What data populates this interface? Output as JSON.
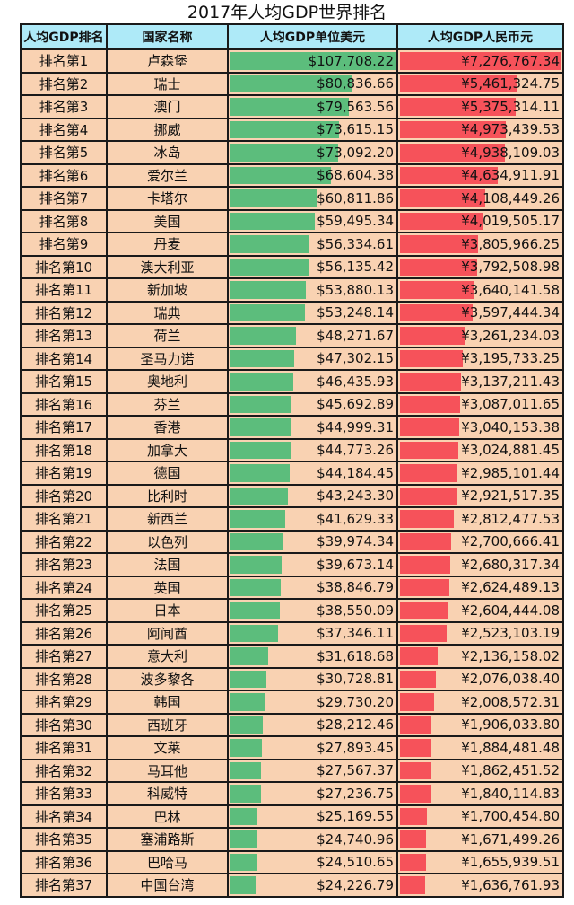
{
  "title": "2017年人均GDP世界排名",
  "colors": {
    "header_bg": "#aeeaf8",
    "cell_bg": "#f9d2b2",
    "usd_bar": "#5cbd7c",
    "cny_bar": "#f6525a"
  },
  "chart_data": {
    "type": "table",
    "title": "2017年人均GDP世界排名",
    "columns": [
      "人均GDP排名",
      "国家名称",
      "人均GDP单位美元",
      "人均GDP人民币元"
    ],
    "data_bars": [
      "人均GDP单位美元",
      "人均GDP人民币元"
    ],
    "rows": [
      [
        "排名第1",
        "卢森堡",
        "$107,708.22",
        "¥7,276,767.34"
      ],
      [
        "排名第2",
        "瑞士",
        "$80,836.66",
        "¥5,461,324.75"
      ],
      [
        "排名第3",
        "澳门",
        "$79,563.56",
        "¥5,375,314.11"
      ],
      [
        "排名第4",
        "挪威",
        "$73,615.15",
        "¥4,973,439.53"
      ],
      [
        "排名第5",
        "冰岛",
        "$73,092.20",
        "¥4,938,109.03"
      ],
      [
        "排名第6",
        "爱尔兰",
        "$68,604.38",
        "¥4,634,911.91"
      ],
      [
        "排名第7",
        "卡塔尔",
        "$60,811.86",
        "¥4,108,449.26"
      ],
      [
        "排名第8",
        "美国",
        "$59,495.34",
        "¥4,019,505.17"
      ],
      [
        "排名第9",
        "丹麦",
        "$56,334.61",
        "¥3,805,966.25"
      ],
      [
        "排名第10",
        "澳大利亚",
        "$56,135.42",
        "¥3,792,508.98"
      ],
      [
        "排名第11",
        "新加坡",
        "$53,880.13",
        "¥3,640,141.58"
      ],
      [
        "排名第12",
        "瑞典",
        "$53,248.14",
        "¥3,597,444.34"
      ],
      [
        "排名第13",
        "荷兰",
        "$48,271.67",
        "¥3,261,234.03"
      ],
      [
        "排名第14",
        "圣马力诺",
        "$47,302.15",
        "¥3,195,733.25"
      ],
      [
        "排名第15",
        "奥地利",
        "$46,435.93",
        "¥3,137,211.43"
      ],
      [
        "排名第16",
        "芬兰",
        "$45,692.89",
        "¥3,087,011.65"
      ],
      [
        "排名第17",
        "香港",
        "$44,999.31",
        "¥3,040,153.38"
      ],
      [
        "排名第18",
        "加拿大",
        "$44,773.26",
        "¥3,024,881.45"
      ],
      [
        "排名第19",
        "德国",
        "$44,184.45",
        "¥2,985,101.44"
      ],
      [
        "排名第20",
        "比利时",
        "$43,243.30",
        "¥2,921,517.35"
      ],
      [
        "排名第21",
        "新西兰",
        "$41,629.33",
        "¥2,812,477.53"
      ],
      [
        "排名第22",
        "以色列",
        "$39,974.34",
        "¥2,700,666.41"
      ],
      [
        "排名第23",
        "法国",
        "$39,673.14",
        "¥2,680,317.34"
      ],
      [
        "排名第24",
        "英国",
        "$38,846.79",
        "¥2,624,489.13"
      ],
      [
        "排名第25",
        "日本",
        "$38,550.09",
        "¥2,604,444.08"
      ],
      [
        "排名第26",
        "阿闻酋",
        "$37,346.11",
        "¥2,523,103.19"
      ],
      [
        "排名第27",
        "意大利",
        "$31,618.68",
        "¥2,136,158.02"
      ],
      [
        "排名第28",
        "波多黎各",
        "$30,728.81",
        "¥2,076,038.40"
      ],
      [
        "排名第29",
        "韩国",
        "$29,730.20",
        "¥2,008,572.31"
      ],
      [
        "排名第30",
        "西班牙",
        "$28,212.46",
        "¥1,906,033.80"
      ],
      [
        "排名第31",
        "文莱",
        "$27,893.45",
        "¥1,884,481.48"
      ],
      [
        "排名第32",
        "马耳他",
        "$27,567.37",
        "¥1,862,451.52"
      ],
      [
        "排名第33",
        "科威特",
        "$27,236.75",
        "¥1,840,114.83"
      ],
      [
        "排名第34",
        "巴林",
        "$25,169.55",
        "¥1,700,454.80"
      ],
      [
        "排名第35",
        "塞浦路斯",
        "$24,740.96",
        "¥1,671,499.26"
      ],
      [
        "排名第36",
        "巴哈马",
        "$24,510.65",
        "¥1,655,939.51"
      ],
      [
        "排名第37",
        "中国台湾",
        "$24,226.79",
        "¥1,636,761.93"
      ]
    ]
  }
}
